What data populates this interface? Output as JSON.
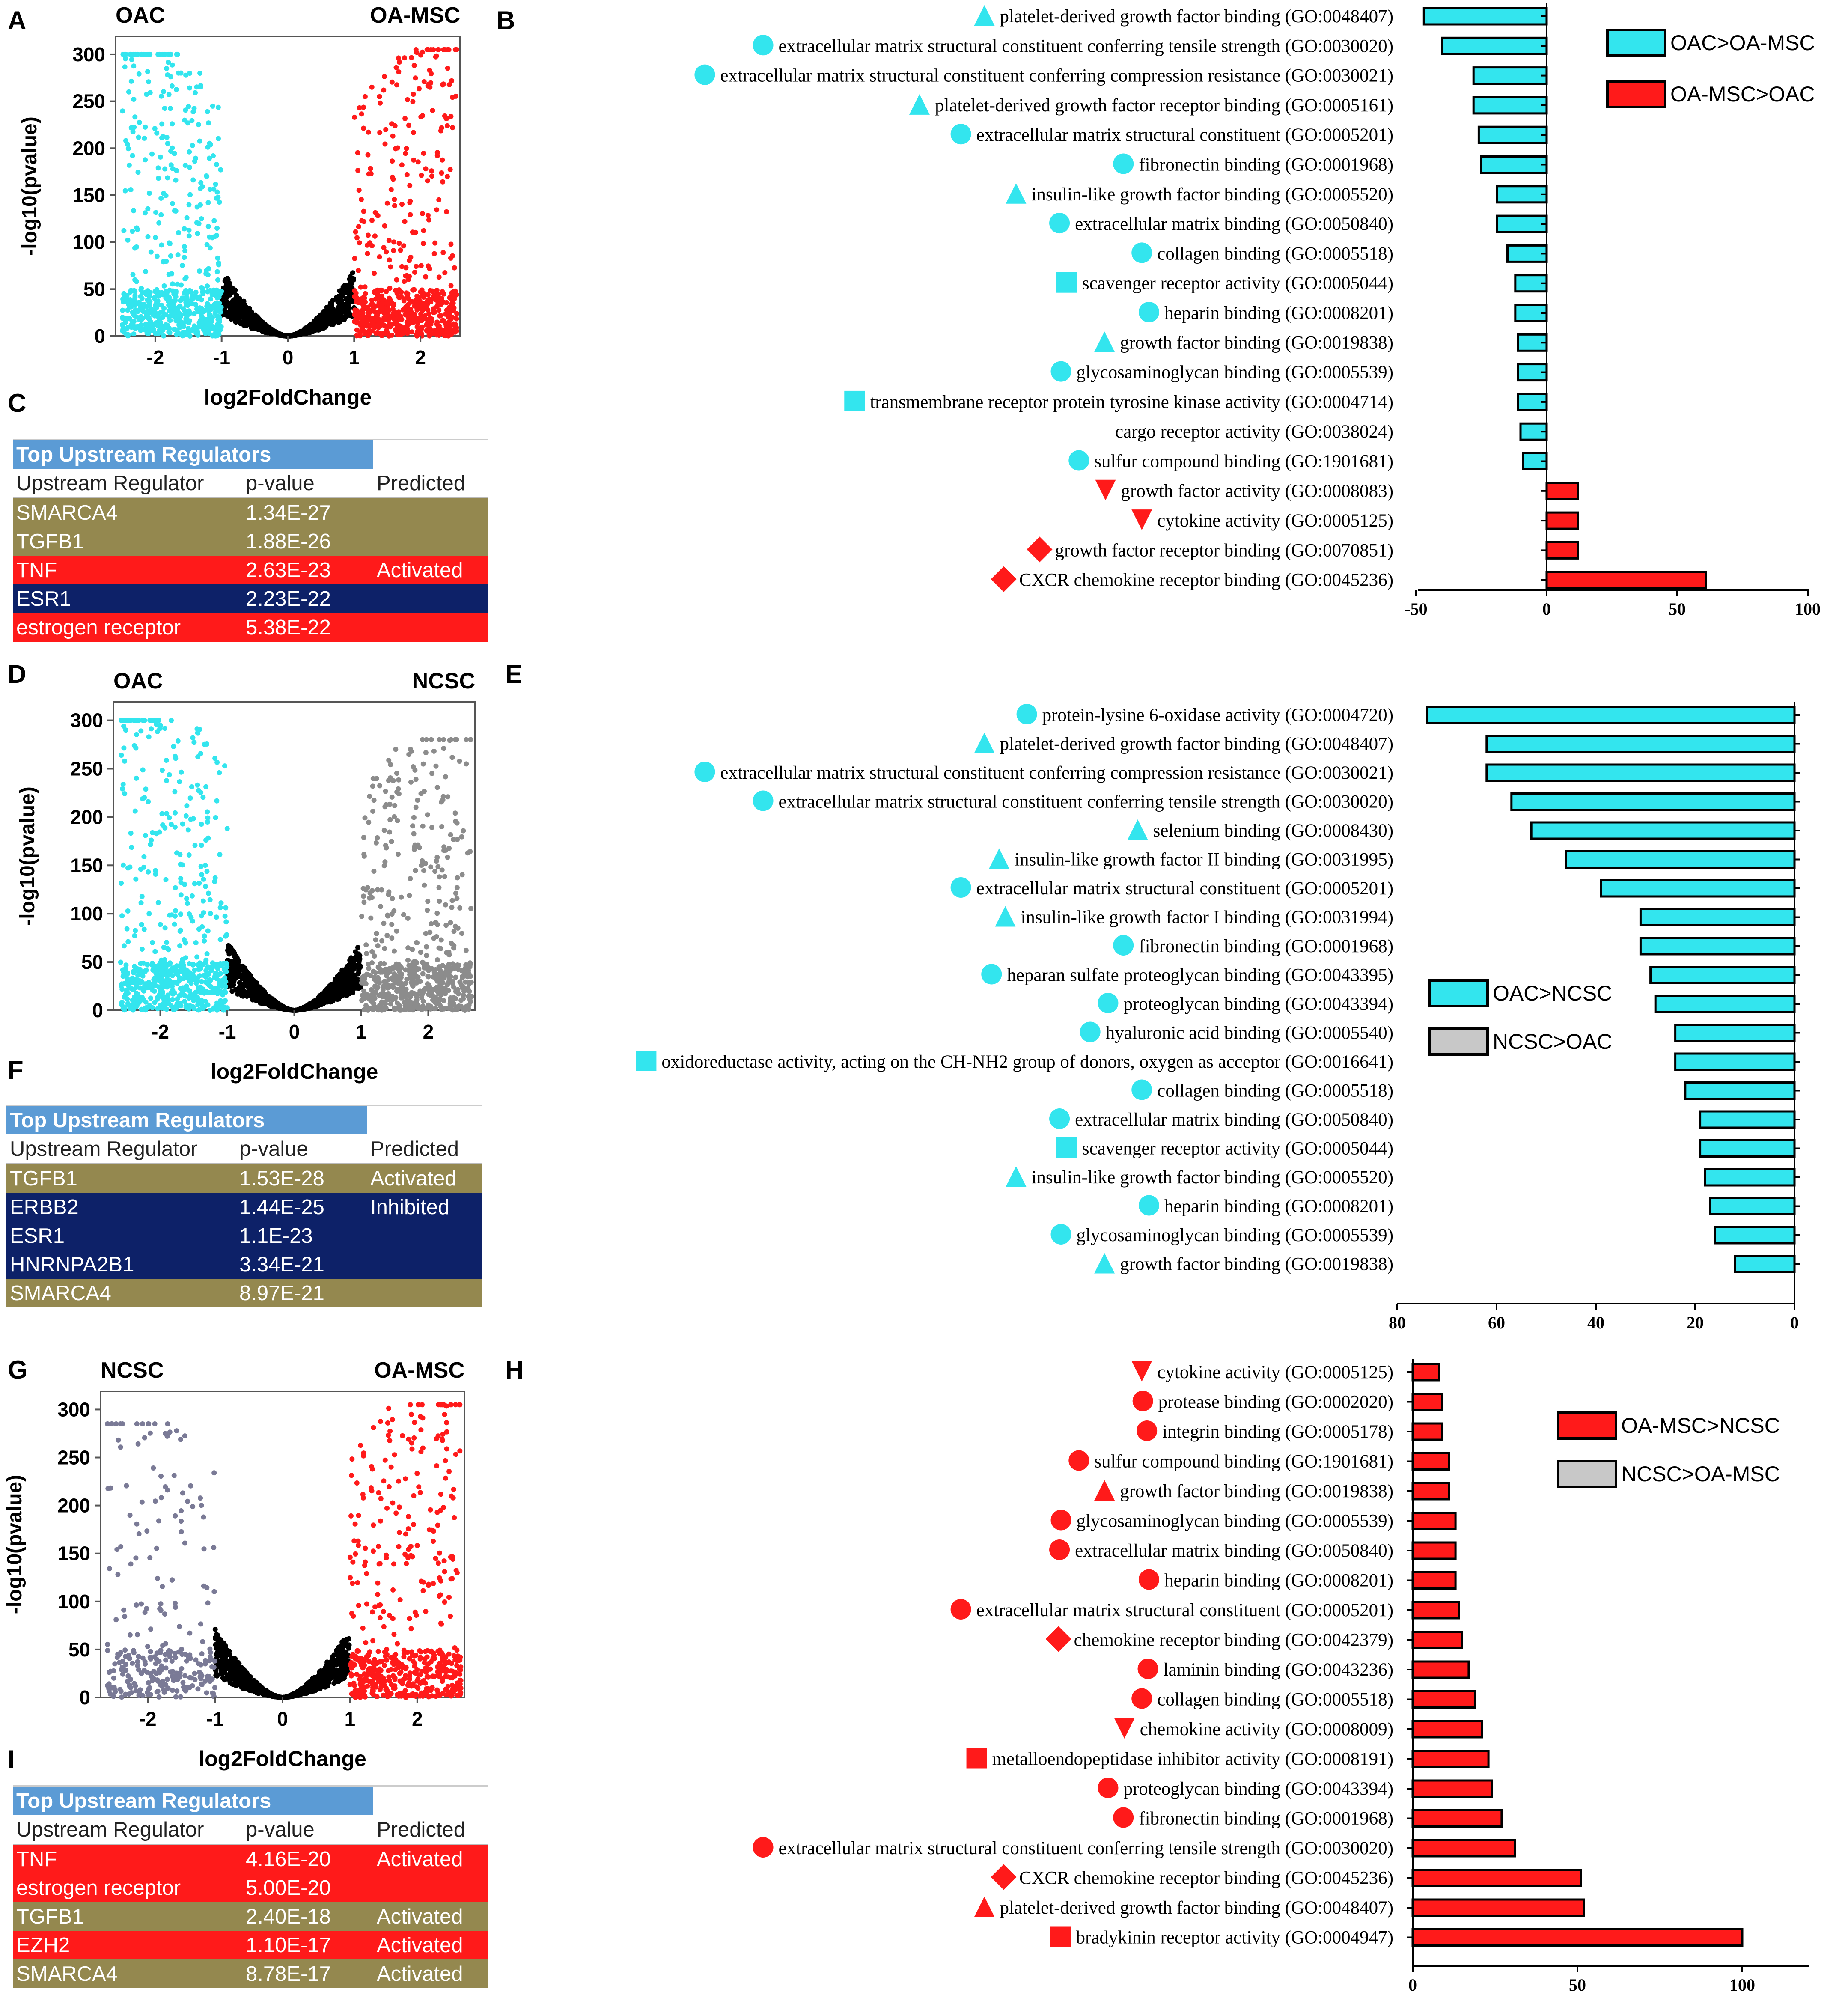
{
  "panel_letters": [
    "A",
    "B",
    "C",
    "D",
    "E",
    "F",
    "G",
    "H",
    "I"
  ],
  "colors": {
    "cyan": "#33e5ee",
    "red": "#ff1a1a",
    "gray": "#8c8c8c",
    "slate": "#7a7a96",
    "black": "#000000",
    "olive": "#94884f",
    "navy": "#0d2168",
    "blue": "#5b9bd5"
  },
  "chart_data": [
    {
      "id": "A",
      "type": "scatter",
      "subtype": "volcano",
      "left_label": "OAC",
      "right_label": "OA-MSC",
      "xlabel": "log2FoldChange",
      "ylabel": "-log10(pvalue)",
      "xlim": [
        -2.6,
        2.6
      ],
      "ylim": [
        0,
        310
      ],
      "xticks": [
        -2,
        -1,
        0,
        1,
        2
      ],
      "yticks": [
        0,
        50,
        100,
        150,
        200,
        250,
        300
      ],
      "left_color": "#33e5ee",
      "center_color": "#000000",
      "right_color": "#ff1a1a",
      "left_max": 300,
      "right_max": 305,
      "left_density": 1.0,
      "right_density": 1.0
    },
    {
      "id": "B",
      "type": "bar",
      "orientation": "horizontal",
      "xticks": [
        -50,
        0,
        50,
        100
      ],
      "xlim": [
        -50,
        100
      ],
      "legend": [
        {
          "label": "OAC>OA-MSC",
          "color": "#33e5ee"
        },
        {
          "label": "OA-MSC>OAC",
          "color": "#ff1a1a"
        }
      ],
      "categories": [
        "platelet-derived growth factor binding (GO:0048407)",
        "extracellular matrix structural constituent conferring tensile strength (GO:0030020)",
        "extracellular matrix structural constituent conferring compression resistance (GO:0030021)",
        "platelet-derived growth factor receptor binding (GO:0005161)",
        "extracellular matrix structural constituent (GO:0005201)",
        "fibronectin binding (GO:0001968)",
        "insulin-like growth factor binding (GO:0005520)",
        "extracellular matrix binding (GO:0050840)",
        "collagen binding (GO:0005518)",
        "scavenger receptor activity (GO:0005044)",
        "heparin binding (GO:0008201)",
        "growth factor binding (GO:0019838)",
        "glycosaminoglycan binding (GO:0005539)",
        "transmembrane receptor protein tyrosine kinase activity (GO:0004714)",
        "cargo receptor activity (GO:0038024)",
        "sulfur compound binding (GO:1901681)",
        "growth factor activity (GO:0008083)",
        "cytokine activity (GO:0005125)",
        "growth factor receptor binding (GO:0070851)",
        "CXCR chemokine receptor binding (GO:0045236)"
      ],
      "values": [
        -47,
        -40,
        -28,
        -28,
        -26,
        -25,
        -19,
        -19,
        -15,
        -12,
        -12,
        -11,
        -11,
        -11,
        -10,
        -9,
        12,
        12,
        12,
        61
      ],
      "markers": [
        "triangle",
        "circle",
        "circle",
        "triangle",
        "circle",
        "circle",
        "triangle",
        "circle",
        "circle",
        "square",
        "circle",
        "triangle",
        "circle",
        "square",
        "none",
        "circle",
        "triangle-down",
        "triangle-down",
        "diamond",
        "diamond"
      ]
    },
    {
      "id": "D",
      "type": "scatter",
      "subtype": "volcano",
      "left_label": "OAC",
      "right_label": "NCSC",
      "xlabel": "log2FoldChange",
      "ylabel": "-log10(pvalue)",
      "xlim": [
        -2.7,
        2.7
      ],
      "ylim": [
        0,
        310
      ],
      "xticks": [
        -2,
        -1,
        0,
        1,
        2
      ],
      "yticks": [
        0,
        50,
        100,
        150,
        200,
        250,
        300
      ],
      "left_color": "#33e5ee",
      "center_color": "#000000",
      "right_color": "#8c8c8c",
      "left_max": 300,
      "right_max": 280,
      "left_density": 1.0,
      "right_density": 1.0
    },
    {
      "id": "E",
      "type": "bar",
      "orientation": "horizontal",
      "xticks": [
        80,
        60,
        40,
        20,
        0
      ],
      "xlim": [
        80,
        0
      ],
      "legend": [
        {
          "label": "OAC>NCSC",
          "color": "#33e5ee"
        },
        {
          "label": "NCSC>OAC",
          "color": "#c8c8c8"
        }
      ],
      "categories": [
        "protein-lysine 6-oxidase activity (GO:0004720)",
        "platelet-derived growth factor binding (GO:0048407)",
        "extracellular matrix structural constituent conferring compression resistance (GO:0030021)",
        "extracellular matrix structural constituent conferring tensile strength (GO:0030020)",
        "selenium binding (GO:0008430)",
        "insulin-like growth factor II binding (GO:0031995)",
        "extracellular matrix structural constituent (GO:0005201)",
        "insulin-like growth factor I binding (GO:0031994)",
        "fibronectin binding (GO:0001968)",
        "heparan sulfate proteoglycan binding (GO:0043395)",
        "proteoglycan binding (GO:0043394)",
        "hyaluronic acid binding (GO:0005540)",
        "oxidoreductase activity, acting on the CH-NH2 group of donors, oxygen as acceptor (GO:0016641)",
        "collagen binding (GO:0005518)",
        "extracellular matrix binding (GO:0050840)",
        "scavenger receptor activity (GO:0005044)",
        "insulin-like growth factor binding (GO:0005520)",
        "heparin binding (GO:0008201)",
        "glycosaminoglycan binding (GO:0005539)",
        "growth factor binding (GO:0019838)"
      ],
      "values": [
        74,
        62,
        62,
        57,
        53,
        46,
        39,
        31,
        31,
        29,
        28,
        24,
        24,
        22,
        19,
        19,
        18,
        17,
        16,
        12
      ],
      "markers": [
        "circle",
        "triangle",
        "circle",
        "circle",
        "triangle",
        "triangle",
        "circle",
        "triangle",
        "circle",
        "circle",
        "circle",
        "circle",
        "square",
        "circle",
        "circle",
        "square",
        "triangle",
        "circle",
        "circle",
        "triangle"
      ]
    },
    {
      "id": "G",
      "type": "scatter",
      "subtype": "volcano",
      "left_label": "NCSC",
      "right_label": "OA-MSC",
      "xlabel": "log2FoldChange",
      "ylabel": "-log10(pvalue)",
      "xlim": [
        -2.7,
        2.7
      ],
      "ylim": [
        0,
        310
      ],
      "xticks": [
        -2,
        -1,
        0,
        1,
        2
      ],
      "yticks": [
        0,
        50,
        100,
        150,
        200,
        250,
        300
      ],
      "left_color": "#7a7a96",
      "center_color": "#000000",
      "right_color": "#ff1a1a",
      "left_max": 285,
      "right_max": 305,
      "left_density": 0.45,
      "right_density": 0.9
    },
    {
      "id": "H",
      "type": "bar",
      "orientation": "horizontal",
      "xticks": [
        0,
        50,
        100
      ],
      "xlim": [
        0,
        120
      ],
      "legend": [
        {
          "label": "OA-MSC>NCSC",
          "color": "#ff1a1a"
        },
        {
          "label": "NCSC>OA-MSC",
          "color": "#c8c8c8"
        }
      ],
      "categories": [
        "cytokine activity (GO:0005125)",
        "protease binding (GO:0002020)",
        "integrin binding (GO:0005178)",
        "sulfur compound binding (GO:1901681)",
        "growth factor binding (GO:0019838)",
        "glycosaminoglycan binding (GO:0005539)",
        "extracellular matrix binding (GO:0050840)",
        "heparin binding (GO:0008201)",
        "extracellular matrix structural constituent (GO:0005201)",
        "chemokine receptor binding (GO:0042379)",
        "laminin binding (GO:0043236)",
        "collagen binding (GO:0005518)",
        "chemokine activity (GO:0008009)",
        "metalloendopeptidase inhibitor activity (GO:0008191)",
        "proteoglycan binding (GO:0043394)",
        "fibronectin binding (GO:0001968)",
        "extracellular matrix structural constituent conferring tensile strength (GO:0030020)",
        "CXCR chemokine receptor binding (GO:0045236)",
        "platelet-derived growth factor binding (GO:0048407)",
        "bradykinin receptor activity (GO:0004947)"
      ],
      "values": [
        8,
        9,
        9,
        11,
        11,
        13,
        13,
        13,
        14,
        15,
        17,
        19,
        21,
        23,
        24,
        27,
        31,
        51,
        52,
        100
      ],
      "markers": [
        "triangle-down",
        "circle",
        "circle",
        "circle",
        "triangle",
        "circle",
        "circle",
        "circle",
        "circle",
        "diamond",
        "circle",
        "circle",
        "triangle-down",
        "square",
        "circle",
        "circle",
        "circle",
        "diamond",
        "triangle",
        "square"
      ]
    }
  ],
  "tables": [
    {
      "id": "C",
      "title": "Top Upstream Regulators",
      "columns": [
        "Upstream Regulator",
        "p-value",
        "Predicted"
      ],
      "rows": [
        {
          "name": "SMARCA4",
          "p": "1.34E-27",
          "pred": "",
          "color": "olive"
        },
        {
          "name": "TGFB1",
          "p": "1.88E-26",
          "pred": "",
          "color": "olive"
        },
        {
          "name": "TNF",
          "p": "2.63E-23",
          "pred": "Activated",
          "color": "red"
        },
        {
          "name": "ESR1",
          "p": "2.23E-22",
          "pred": "",
          "color": "navy"
        },
        {
          "name": "estrogen receptor",
          "p": "5.38E-22",
          "pred": "",
          "color": "red"
        }
      ]
    },
    {
      "id": "F",
      "title": "Top Upstream Regulators",
      "columns": [
        "Upstream Regulator",
        "p-value",
        "Predicted"
      ],
      "rows": [
        {
          "name": "TGFB1",
          "p": "1.53E-28",
          "pred": "Activated",
          "color": "olive"
        },
        {
          "name": "ERBB2",
          "p": "1.44E-25",
          "pred": "Inhibited",
          "color": "navy"
        },
        {
          "name": "ESR1",
          "p": "1.1E-23",
          "pred": "",
          "color": "navy"
        },
        {
          "name": "HNRNPA2B1",
          "p": "3.34E-21",
          "pred": "",
          "color": "navy"
        },
        {
          "name": "SMARCA4",
          "p": "8.97E-21",
          "pred": "",
          "color": "olive"
        }
      ]
    },
    {
      "id": "I",
      "title": "Top Upstream Regulators",
      "columns": [
        "Upstream Regulator",
        "p-value",
        "Predicted"
      ],
      "rows": [
        {
          "name": "TNF",
          "p": "4.16E-20",
          "pred": "Activated",
          "color": "red"
        },
        {
          "name": "estrogen receptor",
          "p": "5.00E-20",
          "pred": "",
          "color": "red"
        },
        {
          "name": "TGFB1",
          "p": "2.40E-18",
          "pred": "Activated",
          "color": "olive"
        },
        {
          "name": "EZH2",
          "p": "1.10E-17",
          "pred": "Activated",
          "color": "red"
        },
        {
          "name": "SMARCA4",
          "p": "8.78E-17",
          "pred": "Activated",
          "color": "olive"
        }
      ]
    }
  ]
}
